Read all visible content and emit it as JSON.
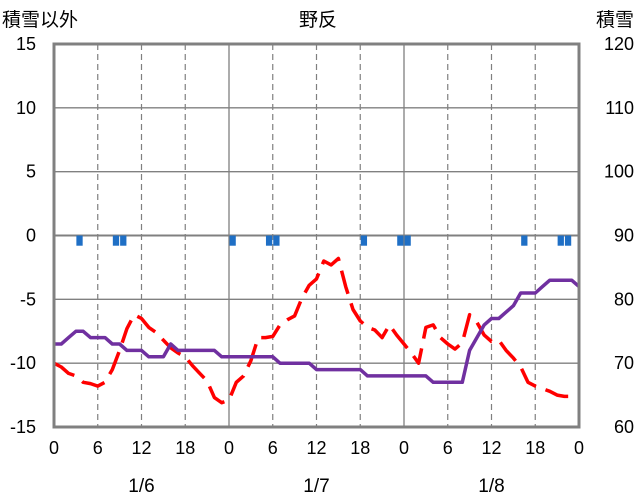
{
  "chart_data": {
    "type": "line",
    "title": "野反",
    "y_left_label": "積雪以外",
    "y_right_label": "積雪",
    "y_left_range": [
      -15,
      15
    ],
    "y_left_ticks": [
      -15,
      -10,
      -5,
      0,
      5,
      10,
      15
    ],
    "y_right_range": [
      60,
      120
    ],
    "y_right_ticks": [
      60,
      70,
      80,
      90,
      100,
      110,
      120
    ],
    "x_range_hours": [
      0,
      72
    ],
    "x_tick_labels": [
      "0",
      "6",
      "12",
      "18",
      "0",
      "6",
      "12",
      "18",
      "0",
      "6",
      "12",
      "18",
      "0"
    ],
    "day_labels": [
      "1/6",
      "1/7",
      "1/8"
    ],
    "series": [
      {
        "role": "temperature",
        "axis": "left",
        "color": "#ff0000",
        "dashed": true,
        "points": [
          [
            0,
            -10
          ],
          [
            1,
            -10.3
          ],
          [
            2,
            -10.8
          ],
          [
            3,
            -11
          ],
          [
            4,
            -11.5
          ],
          [
            5,
            -11.6
          ],
          [
            6,
            -11.8
          ],
          [
            7,
            -11.5
          ],
          [
            8,
            -10.5
          ],
          [
            9,
            -9
          ],
          [
            10,
            -7.3
          ],
          [
            11,
            -6.2
          ],
          [
            12,
            -6.5
          ],
          [
            13,
            -7.2
          ],
          [
            14,
            -7.6
          ],
          [
            15,
            -8.2
          ],
          [
            16,
            -8.8
          ],
          [
            17,
            -9.2
          ],
          [
            18,
            -9.5
          ],
          [
            19,
            -10.2
          ],
          [
            20,
            -10.8
          ],
          [
            21,
            -11.4
          ],
          [
            22,
            -12.7
          ],
          [
            23,
            -13.1
          ],
          [
            24,
            -12.9
          ],
          [
            25,
            -11.5
          ],
          [
            26,
            -11
          ],
          [
            27,
            -9.8
          ],
          [
            28,
            -8
          ],
          [
            29,
            -8
          ],
          [
            30,
            -7.9
          ],
          [
            31,
            -7
          ],
          [
            32,
            -6.6
          ],
          [
            33,
            -6.3
          ],
          [
            34,
            -4.9
          ],
          [
            35,
            -3.9
          ],
          [
            36,
            -3.4
          ],
          [
            37,
            -2
          ],
          [
            38,
            -2.3
          ],
          [
            39,
            -1.8
          ],
          [
            40,
            -4
          ],
          [
            41,
            -5.8
          ],
          [
            42,
            -6.7
          ],
          [
            43,
            -7.2
          ],
          [
            44,
            -7.4
          ],
          [
            45,
            -8
          ],
          [
            46,
            -7
          ],
          [
            47,
            -7.8
          ],
          [
            48,
            -8.5
          ],
          [
            49,
            -9.2
          ],
          [
            50,
            -10
          ],
          [
            51,
            -7.2
          ],
          [
            52,
            -7
          ],
          [
            53,
            -8
          ],
          [
            54,
            -8.5
          ],
          [
            55,
            -8.9
          ],
          [
            56,
            -8.4
          ],
          [
            57,
            -6.2
          ],
          [
            58,
            -6.8
          ],
          [
            59,
            -7.8
          ],
          [
            60,
            -8.3
          ],
          [
            61,
            -8.2
          ],
          [
            62,
            -9
          ],
          [
            63,
            -9.6
          ],
          [
            64,
            -10.3
          ],
          [
            65,
            -11.5
          ],
          [
            66,
            -11.8
          ],
          [
            67,
            -12
          ],
          [
            68,
            -12.2
          ],
          [
            69,
            -12.5
          ],
          [
            70,
            -12.6
          ],
          [
            71,
            -12.6
          ],
          [
            72,
            -12.6
          ]
        ]
      },
      {
        "role": "precipitation",
        "axis": "left",
        "color": "#1f6fc5",
        "bars": [
          [
            3,
            0.8
          ],
          [
            8,
            0.8
          ],
          [
            9,
            0.8
          ],
          [
            24,
            0.8
          ],
          [
            29,
            0.8
          ],
          [
            30,
            0.8
          ],
          [
            42,
            0.8
          ],
          [
            47,
            0.8
          ],
          [
            48,
            0.8
          ],
          [
            64,
            0.8
          ],
          [
            69,
            0.8
          ],
          [
            70,
            0.8
          ]
        ]
      },
      {
        "role": "snow_depth",
        "axis": "right",
        "color": "#7030a0",
        "dashed": false,
        "points": [
          [
            0,
            73
          ],
          [
            1,
            73
          ],
          [
            2,
            74
          ],
          [
            3,
            75
          ],
          [
            4,
            75
          ],
          [
            5,
            74
          ],
          [
            6,
            74
          ],
          [
            7,
            74
          ],
          [
            8,
            73
          ],
          [
            9,
            73
          ],
          [
            10,
            72
          ],
          [
            11,
            72
          ],
          [
            12,
            72
          ],
          [
            13,
            71
          ],
          [
            14,
            71
          ],
          [
            15,
            71
          ],
          [
            16,
            73
          ],
          [
            17,
            72
          ],
          [
            18,
            72
          ],
          [
            19,
            72
          ],
          [
            20,
            72
          ],
          [
            21,
            72
          ],
          [
            22,
            72
          ],
          [
            23,
            71
          ],
          [
            24,
            71
          ],
          [
            25,
            71
          ],
          [
            26,
            71
          ],
          [
            27,
            71
          ],
          [
            28,
            71
          ],
          [
            29,
            71
          ],
          [
            30,
            71
          ],
          [
            31,
            70
          ],
          [
            32,
            70
          ],
          [
            33,
            70
          ],
          [
            34,
            70
          ],
          [
            35,
            70
          ],
          [
            36,
            69
          ],
          [
            37,
            69
          ],
          [
            38,
            69
          ],
          [
            39,
            69
          ],
          [
            40,
            69
          ],
          [
            41,
            69
          ],
          [
            42,
            69
          ],
          [
            43,
            68
          ],
          [
            44,
            68
          ],
          [
            45,
            68
          ],
          [
            46,
            68
          ],
          [
            47,
            68
          ],
          [
            48,
            68
          ],
          [
            49,
            68
          ],
          [
            50,
            68
          ],
          [
            51,
            68
          ],
          [
            52,
            67
          ],
          [
            53,
            67
          ],
          [
            54,
            67
          ],
          [
            55,
            67
          ],
          [
            56,
            67
          ],
          [
            57,
            72
          ],
          [
            58,
            74
          ],
          [
            59,
            76
          ],
          [
            60,
            77
          ],
          [
            61,
            77
          ],
          [
            62,
            78
          ],
          [
            63,
            79
          ],
          [
            64,
            81
          ],
          [
            65,
            81
          ],
          [
            66,
            81
          ],
          [
            67,
            82
          ],
          [
            68,
            83
          ],
          [
            69,
            83
          ],
          [
            70,
            83
          ],
          [
            71,
            83
          ],
          [
            72,
            82
          ]
        ]
      }
    ]
  }
}
